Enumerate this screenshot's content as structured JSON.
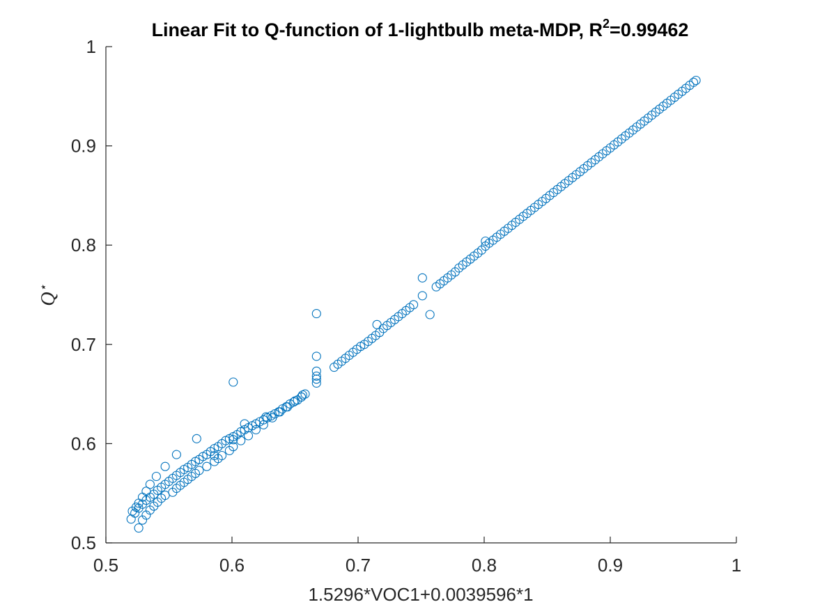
{
  "chart_data": {
    "type": "scatter",
    "title": {
      "main": "Linear Fit to Q-function of 1-lightbulb meta-MDP, R",
      "superscript": "2",
      "suffix": "=0.99462"
    },
    "xlabel": "1.5296*VOC1+0.0039596*1",
    "ylabel": {
      "symbol": "Q",
      "superscript": "⋆"
    },
    "xlim": [
      0.5,
      1
    ],
    "ylim": [
      0.5,
      1
    ],
    "xticks": [
      0.5,
      0.6,
      0.7,
      0.8,
      0.9,
      1
    ],
    "yticks": [
      0.5,
      0.6,
      0.7,
      0.8,
      0.9,
      1
    ],
    "xtick_labels": [
      "0.5",
      "0.6",
      "0.7",
      "0.8",
      "0.9",
      "1"
    ],
    "ytick_labels": [
      "0.5",
      "0.6",
      "0.7",
      "0.8",
      "0.9",
      "1"
    ],
    "marker_color": "#0072BD",
    "marker_shape": "open-circle",
    "grid": false,
    "series": [
      {
        "x": [
          0.52,
          0.523,
          0.526,
          0.529,
          0.532,
          0.535,
          0.538,
          0.541,
          0.544,
          0.547,
          0.55,
          0.553,
          0.556,
          0.559,
          0.562,
          0.565,
          0.568,
          0.571,
          0.574,
          0.577,
          0.58,
          0.583,
          0.586,
          0.589,
          0.592,
          0.595,
          0.598,
          0.601,
          0.604,
          0.607,
          0.61,
          0.613,
          0.616,
          0.619,
          0.622,
          0.625,
          0.628,
          0.631,
          0.634,
          0.637,
          0.64,
          0.643,
          0.646,
          0.649,
          0.652,
          0.655,
          0.658,
          0.681,
          0.684,
          0.687,
          0.69,
          0.693,
          0.696,
          0.699,
          0.702,
          0.705,
          0.708,
          0.711,
          0.714,
          0.717,
          0.72,
          0.723,
          0.726,
          0.729,
          0.732,
          0.735,
          0.738,
          0.741,
          0.744,
          0.762,
          0.765,
          0.768,
          0.771,
          0.774,
          0.777,
          0.78,
          0.783,
          0.786,
          0.789,
          0.792,
          0.795,
          0.798,
          0.801,
          0.804,
          0.807,
          0.81,
          0.813,
          0.816,
          0.819,
          0.822,
          0.825,
          0.828,
          0.831,
          0.834,
          0.837,
          0.84,
          0.843,
          0.846,
          0.849,
          0.852,
          0.855,
          0.858,
          0.861,
          0.864,
          0.867,
          0.87,
          0.873,
          0.876,
          0.879,
          0.882,
          0.885,
          0.888,
          0.891,
          0.894,
          0.897,
          0.9,
          0.903,
          0.906,
          0.909,
          0.912,
          0.915,
          0.918,
          0.921,
          0.924,
          0.927,
          0.93,
          0.933,
          0.936,
          0.939,
          0.942,
          0.945,
          0.948,
          0.951,
          0.954,
          0.957,
          0.96,
          0.963,
          0.966,
          0.968,
          0.526,
          0.529,
          0.532,
          0.535,
          0.538,
          0.541,
          0.544,
          0.547,
          0.553,
          0.556,
          0.559,
          0.562,
          0.565,
          0.568,
          0.571,
          0.574,
          0.58,
          0.586,
          0.589,
          0.592,
          0.598,
          0.601,
          0.607,
          0.613,
          0.619,
          0.625,
          0.632,
          0.638,
          0.644,
          0.65,
          0.656,
          0.521,
          0.524,
          0.526,
          0.529,
          0.532,
          0.535,
          0.54,
          0.547,
          0.556,
          0.572,
          0.586,
          0.601,
          0.61,
          0.627,
          0.655,
          0.667,
          0.601,
          0.667,
          0.667,
          0.667,
          0.667,
          0.667,
          0.715,
          0.751,
          0.751,
          0.757,
          0.801
        ],
        "y": [
          0.524,
          0.53,
          0.535,
          0.539,
          0.543,
          0.546,
          0.549,
          0.553,
          0.556,
          0.559,
          0.562,
          0.565,
          0.568,
          0.571,
          0.574,
          0.576,
          0.579,
          0.582,
          0.584,
          0.587,
          0.589,
          0.592,
          0.595,
          0.597,
          0.6,
          0.603,
          0.605,
          0.607,
          0.609,
          0.612,
          0.614,
          0.616,
          0.618,
          0.62,
          0.622,
          0.624,
          0.626,
          0.628,
          0.63,
          0.632,
          0.635,
          0.637,
          0.64,
          0.642,
          0.644,
          0.647,
          0.65,
          0.677,
          0.68,
          0.683,
          0.686,
          0.689,
          0.692,
          0.695,
          0.698,
          0.7,
          0.703,
          0.706,
          0.709,
          0.712,
          0.716,
          0.719,
          0.722,
          0.725,
          0.728,
          0.731,
          0.734,
          0.737,
          0.74,
          0.758,
          0.761,
          0.764,
          0.767,
          0.77,
          0.773,
          0.777,
          0.78,
          0.783,
          0.786,
          0.789,
          0.792,
          0.795,
          0.799,
          0.802,
          0.805,
          0.808,
          0.811,
          0.814,
          0.817,
          0.82,
          0.823,
          0.826,
          0.829,
          0.832,
          0.835,
          0.838,
          0.841,
          0.844,
          0.847,
          0.85,
          0.853,
          0.856,
          0.859,
          0.862,
          0.865,
          0.868,
          0.871,
          0.874,
          0.877,
          0.88,
          0.883,
          0.886,
          0.889,
          0.892,
          0.895,
          0.898,
          0.901,
          0.904,
          0.907,
          0.91,
          0.913,
          0.916,
          0.919,
          0.922,
          0.925,
          0.928,
          0.931,
          0.934,
          0.937,
          0.94,
          0.943,
          0.946,
          0.949,
          0.952,
          0.955,
          0.958,
          0.961,
          0.964,
          0.966,
          0.515,
          0.523,
          0.528,
          0.533,
          0.537,
          0.541,
          0.545,
          0.548,
          0.551,
          0.555,
          0.558,
          0.561,
          0.564,
          0.567,
          0.57,
          0.573,
          0.577,
          0.582,
          0.585,
          0.588,
          0.593,
          0.597,
          0.603,
          0.608,
          0.614,
          0.619,
          0.626,
          0.632,
          0.637,
          0.643,
          0.649,
          0.532,
          0.536,
          0.54,
          0.546,
          0.552,
          0.559,
          0.567,
          0.577,
          0.589,
          0.605,
          0.588,
          0.604,
          0.62,
          0.627,
          0.647,
          0.661,
          0.662,
          0.665,
          0.668,
          0.673,
          0.688,
          0.731,
          0.72,
          0.749,
          0.767,
          0.73,
          0.804
        ]
      }
    ]
  }
}
